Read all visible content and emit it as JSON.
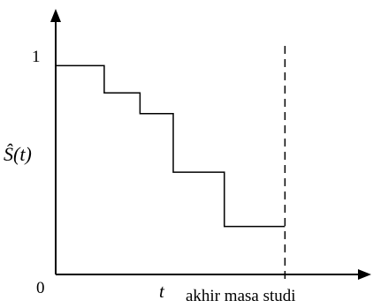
{
  "chart_data": {
    "type": "line",
    "step": true,
    "title": "",
    "xlabel": "t",
    "ylabel": "Ŝ(t)",
    "origin_label": "0",
    "y_tick_labels": [
      "1"
    ],
    "vline": {
      "x": 8.97,
      "label": "akhir masa studi",
      "style": "dashed"
    },
    "xlim": [
      0,
      12
    ],
    "ylim": [
      0,
      1.23
    ],
    "series": [
      {
        "x": [
          0,
          1.9,
          1.9,
          3.3,
          3.3,
          4.6,
          4.6,
          6.6,
          6.6,
          8.97
        ],
        "y": [
          1.0,
          1.0,
          0.87,
          0.87,
          0.77,
          0.77,
          0.49,
          0.49,
          0.23,
          0.23
        ]
      }
    ],
    "grid": false,
    "legend": "none",
    "line_color": "#000000"
  }
}
